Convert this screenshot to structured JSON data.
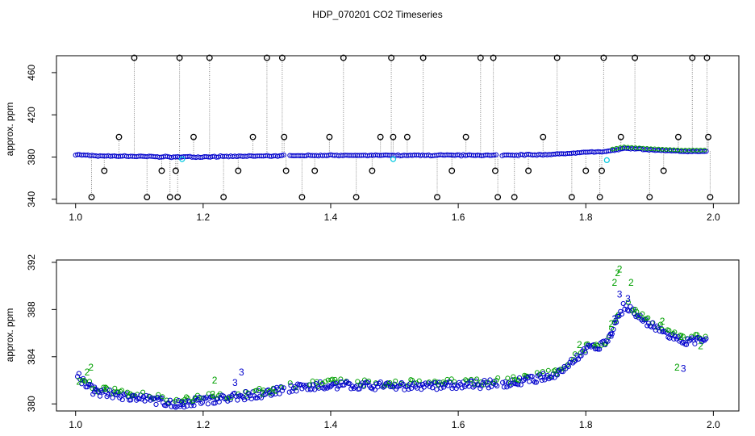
{
  "figure": {
    "title": "HDP_070201  CO2 Timeseries"
  },
  "chart_data": [
    {
      "type": "scatter",
      "title": "",
      "xlabel": "",
      "ylabel": "approx. ppm",
      "xlim": [
        0.97,
        2.04
      ],
      "ylim": [
        336,
        476
      ],
      "x_ticks": [
        1.0,
        1.2,
        1.4,
        1.6,
        1.8,
        2.0
      ],
      "x_tick_labels": [
        "1.0",
        "1.2",
        "1.4",
        "1.6",
        "1.8",
        "2.0"
      ],
      "y_ticks": [
        340,
        380,
        420,
        460
      ],
      "y_tick_labels": [
        "340",
        "380",
        "420",
        "460"
      ],
      "grid": false,
      "colors": {
        "spikes": "#000000",
        "drop_lines": "#888888",
        "raw": "#00a000",
        "filtered": "#0000cc",
        "flagged": "#00c8e0"
      },
      "baseline_knots": {
        "x": [
          1.0,
          1.03,
          1.1,
          1.16,
          1.2,
          1.3,
          1.33,
          1.4,
          1.5,
          1.6,
          1.66,
          1.7,
          1.75,
          1.8,
          1.83,
          1.86,
          1.9,
          1.95,
          1.99
        ],
        "y": [
          382.5,
          381.0,
          380.5,
          380.0,
          380.3,
          380.9,
          381.3,
          381.6,
          381.5,
          381.6,
          381.7,
          381.9,
          382.4,
          384.6,
          385.0,
          388.3,
          386.7,
          385.3,
          385.4
        ]
      },
      "gaps": [
        [
          1.327,
          1.335
        ],
        [
          1.662,
          1.668
        ]
      ],
      "spike_points": {
        "x": [
          1.025,
          1.045,
          1.068,
          1.092,
          1.112,
          1.135,
          1.148,
          1.157,
          1.16,
          1.163,
          1.185,
          1.21,
          1.232,
          1.255,
          1.278,
          1.3,
          1.324,
          1.327,
          1.33,
          1.355,
          1.375,
          1.398,
          1.42,
          1.44,
          1.465,
          1.478,
          1.495,
          1.498,
          1.52,
          1.545,
          1.567,
          1.59,
          1.612,
          1.635,
          1.655,
          1.658,
          1.662,
          1.688,
          1.71,
          1.733,
          1.755,
          1.778,
          1.8,
          1.822,
          1.825,
          1.828,
          1.855,
          1.877,
          1.9,
          1.922,
          1.945,
          1.967,
          1.99,
          1.992,
          1.995
        ],
        "y": [
          342,
          367,
          399,
          474,
          342,
          367,
          342,
          367,
          342,
          474,
          399,
          474,
          342,
          367,
          399,
          474,
          474,
          399,
          367,
          342,
          367,
          399,
          474,
          342,
          367,
          399,
          474,
          399,
          399,
          474,
          342,
          367,
          399,
          474,
          474,
          367,
          342,
          342,
          367,
          399,
          474,
          342,
          367,
          342,
          367,
          474,
          399,
          474,
          342,
          367,
          399,
          474,
          474,
          399,
          342
        ]
      },
      "flagged_points": {
        "x": [
          1.167,
          1.498,
          1.833
        ],
        "y": [
          378,
          378,
          377
        ]
      },
      "series": [
        {
          "name": "",
          "symbol": "o",
          "color": "#0000cc"
        }
      ]
    },
    {
      "type": "scatter",
      "title": "",
      "xlabel": "",
      "ylabel": "approx. ppm",
      "xlim": [
        0.97,
        2.04
      ],
      "ylim": [
        379.4,
        392.2
      ],
      "x_ticks": [
        1.0,
        1.2,
        1.4,
        1.6,
        1.8,
        2.0
      ],
      "x_tick_labels": [
        "1.0",
        "1.2",
        "1.4",
        "1.6",
        "1.8",
        "2.0"
      ],
      "y_ticks": [
        380,
        384,
        388,
        392
      ],
      "y_tick_labels": [
        "380",
        "384",
        "388",
        "392"
      ],
      "grid": false,
      "colors": {
        "series_2": "#00a000",
        "series_3": "#0000cc"
      },
      "gaps": [
        [
          1.327,
          1.335
        ],
        [
          1.662,
          1.668
        ]
      ],
      "series_labels": {
        "green": "2",
        "blue": "3"
      },
      "green_markers": [
        {
          "x": 1.005,
          "y": 381.9
        },
        {
          "x": 1.018,
          "y": 382.7
        },
        {
          "x": 1.024,
          "y": 383.1
        },
        {
          "x": 1.047,
          "y": 381.3
        },
        {
          "x": 1.215,
          "y": 380.8
        },
        {
          "x": 1.218,
          "y": 382.0
        },
        {
          "x": 1.293,
          "y": 380.9
        },
        {
          "x": 1.305,
          "y": 381.0
        },
        {
          "x": 1.79,
          "y": 385.0
        },
        {
          "x": 1.84,
          "y": 386.8
        },
        {
          "x": 1.845,
          "y": 390.3
        },
        {
          "x": 1.85,
          "y": 391.1
        },
        {
          "x": 1.853,
          "y": 391.4
        },
        {
          "x": 1.871,
          "y": 390.3
        },
        {
          "x": 1.92,
          "y": 387.0
        },
        {
          "x": 1.943,
          "y": 383.1
        },
        {
          "x": 1.95,
          "y": 385.7
        },
        {
          "x": 1.98,
          "y": 384.9
        }
      ],
      "blue_markers": [
        {
          "x": 1.03,
          "y": 381.3
        },
        {
          "x": 1.165,
          "y": 380.0
        },
        {
          "x": 1.25,
          "y": 381.8
        },
        {
          "x": 1.26,
          "y": 382.7
        },
        {
          "x": 1.84,
          "y": 385.8
        },
        {
          "x": 1.845,
          "y": 387.2
        },
        {
          "x": 1.853,
          "y": 389.3
        },
        {
          "x": 1.866,
          "y": 388.9
        },
        {
          "x": 1.953,
          "y": 383.0
        }
      ]
    }
  ]
}
